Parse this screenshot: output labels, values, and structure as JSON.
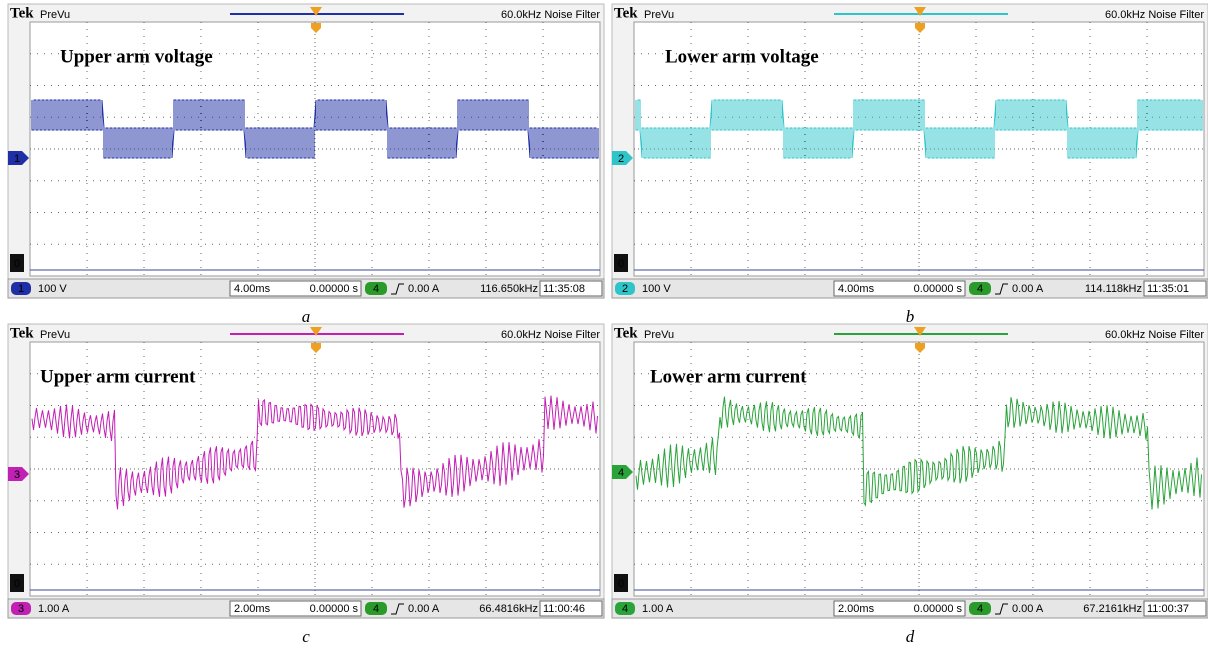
{
  "panels": [
    {
      "label": "a",
      "brand": "Tek",
      "mode": "PreVu",
      "filter": "60.0kHz  Noise Filter",
      "trace_title": "Upper arm voltage",
      "channel": "1",
      "scale": "100 V",
      "timebase": "4.00ms",
      "trigger_pos": "0.00000 s",
      "trigger_channel": "4",
      "trigger_level": "0.00 A",
      "frequency": "116.650kHz",
      "time": "11:35:08",
      "ground": "0",
      "color": "#1f2fa6"
    },
    {
      "label": "b",
      "brand": "Tek",
      "mode": "PreVu",
      "filter": "60.0kHz  Noise Filter",
      "trace_title": "Lower arm voltage",
      "channel": "2",
      "scale": "100 V",
      "timebase": "4.00ms",
      "trigger_pos": "0.00000 s",
      "trigger_channel": "4",
      "trigger_level": "0.00 A",
      "frequency": "114.118kHz",
      "time": "11:35:01",
      "ground": "0",
      "color": "#2ec4c8"
    },
    {
      "label": "c",
      "brand": "Tek",
      "mode": "PreVu",
      "filter": "60.0kHz  Noise Filter",
      "trace_title": "Upper arm current",
      "channel": "3",
      "scale": "1.00 A",
      "timebase": "2.00ms",
      "trigger_pos": "0.00000 s",
      "trigger_channel": "4",
      "trigger_level": "0.00 A",
      "frequency": "66.4816kHz",
      "time": "11:00:46",
      "ground": "0",
      "color": "#c21fb4"
    },
    {
      "label": "d",
      "brand": "Tek",
      "mode": "PreVu",
      "filter": "60.0kHz  Noise Filter",
      "trace_title": "Lower arm current",
      "channel": "4",
      "scale": "1.00 A",
      "timebase": "2.00ms",
      "trigger_pos": "0.00000 s",
      "trigger_channel": "4",
      "trigger_level": "0.00 A",
      "frequency": "67.2161kHz",
      "time": "11:00:37",
      "ground": "0",
      "color": "#2aa33a"
    }
  ]
}
